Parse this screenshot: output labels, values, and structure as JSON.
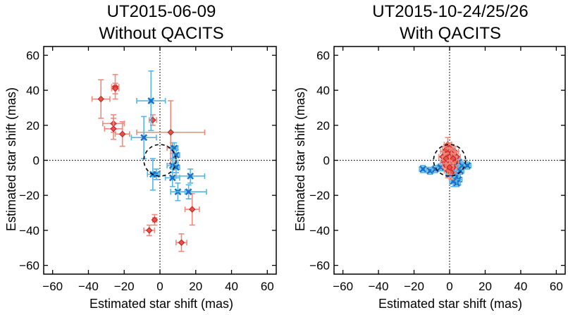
{
  "chart_data": [
    {
      "type": "scatter",
      "title_lines": [
        "UT2015-06-09",
        "Without QACITS"
      ],
      "xlabel": "Estimated star shift (mas)",
      "ylabel": "Estimated star shift (mas)",
      "xlim": [
        -65,
        65
      ],
      "ylim": [
        -65,
        65
      ],
      "ticks": [
        -60,
        -40,
        -20,
        0,
        20,
        40,
        60
      ],
      "tick_labels": [
        "−60",
        "−40",
        "−20",
        "0",
        "20",
        "40",
        "60"
      ],
      "zero_lines": "dotted",
      "reference_circle_radius": 9,
      "series": [
        {
          "color": "#e8504a",
          "error_color": "#f08a7c",
          "marker": "diamond",
          "points": [
            {
              "x": -25,
              "y": 42,
              "xerr": 2,
              "yerr": 7
            },
            {
              "x": -25,
              "y": 41,
              "xerr": 2,
              "yerr": 3
            },
            {
              "x": -33,
              "y": 35,
              "xerr": 5,
              "yerr": 11
            },
            {
              "x": -26,
              "y": 21,
              "xerr": 6,
              "yerr": 5
            },
            {
              "x": -26,
              "y": 18,
              "xerr": 5,
              "yerr": 6
            },
            {
              "x": -4,
              "y": 23,
              "xerr": 2,
              "yerr": 3
            },
            {
              "x": -21,
              "y": 15,
              "xerr": 4,
              "yerr": 7
            },
            {
              "x": 6,
              "y": 16,
              "xerr": 19,
              "yerr": 18
            },
            {
              "x": 7,
              "y": 7,
              "xerr": 3,
              "yerr": 3
            },
            {
              "x": 18,
              "y": -28,
              "xerr": 4,
              "yerr": 9
            },
            {
              "x": -3,
              "y": -34,
              "xerr": 1,
              "yerr": 3
            },
            {
              "x": -6,
              "y": -40,
              "xerr": 3,
              "yerr": 3
            },
            {
              "x": 12,
              "y": -47,
              "xerr": 3,
              "yerr": 5
            }
          ]
        },
        {
          "color": "#1a72c8",
          "error_color": "#56b6e6",
          "marker": "x",
          "points": [
            {
              "x": -5,
              "y": 34,
              "xerr": 8,
              "yerr": 17
            },
            {
              "x": -9,
              "y": 13,
              "xerr": 7,
              "yerr": 12
            },
            {
              "x": 8,
              "y": 7,
              "xerr": 2,
              "yerr": 3
            },
            {
              "x": 9,
              "y": 3,
              "xerr": 2,
              "yerr": 3
            },
            {
              "x": 7,
              "y": -3,
              "xerr": 3,
              "yerr": 4
            },
            {
              "x": 9,
              "y": -4,
              "xerr": 2,
              "yerr": 3
            },
            {
              "x": -2,
              "y": -8,
              "xerr": 2,
              "yerr": 3
            },
            {
              "x": -4,
              "y": -8,
              "xerr": 3,
              "yerr": 9
            },
            {
              "x": 7,
              "y": -10,
              "xerr": 4,
              "yerr": 5
            },
            {
              "x": 17,
              "y": -9,
              "xerr": 8,
              "yerr": 4
            },
            {
              "x": 10,
              "y": -18,
              "xerr": 4,
              "yerr": 5
            },
            {
              "x": 16,
              "y": -18,
              "xerr": 10,
              "yerr": 4
            }
          ]
        }
      ]
    },
    {
      "type": "scatter",
      "title_lines": [
        "UT2015-10-24/25/26",
        "With QACITS"
      ],
      "xlabel": "Estimated star shift (mas)",
      "ylabel": "Estimated star shift (mas)",
      "xlim": [
        -65,
        65
      ],
      "ylim": [
        -65,
        65
      ],
      "ticks": [
        -60,
        -40,
        -20,
        0,
        20,
        40,
        60
      ],
      "tick_labels": [
        "−60",
        "−40",
        "−20",
        "0",
        "20",
        "40",
        "60"
      ],
      "zero_lines": "dotted",
      "reference_circle_radius": 9,
      "series": [
        {
          "color": "#1a72c8",
          "error_color": "#56b6e6",
          "marker": "x",
          "points": [
            {
              "x": -15,
              "y": -5,
              "xerr": 2,
              "yerr": 2
            },
            {
              "x": -11,
              "y": -6,
              "xerr": 2,
              "yerr": 2
            },
            {
              "x": -8,
              "y": -5,
              "xerr": 2,
              "yerr": 2
            },
            {
              "x": -5,
              "y": -4,
              "xerr": 2,
              "yerr": 2
            },
            {
              "x": 1,
              "y": -3,
              "xerr": 2,
              "yerr": 3
            },
            {
              "x": 2,
              "y": -5,
              "xerr": 2,
              "yerr": 2
            },
            {
              "x": 3,
              "y": -7,
              "xerr": 2,
              "yerr": 3
            },
            {
              "x": 4,
              "y": -9,
              "xerr": 2,
              "yerr": 3
            },
            {
              "x": 5,
              "y": -11,
              "xerr": 2,
              "yerr": 3
            },
            {
              "x": 6,
              "y": -6,
              "xerr": 2,
              "yerr": 2
            },
            {
              "x": 3,
              "y": -2,
              "xerr": 2,
              "yerr": 2
            },
            {
              "x": 7,
              "y": -3,
              "xerr": 2,
              "yerr": 2
            },
            {
              "x": 10,
              "y": -3,
              "xerr": 2,
              "yerr": 2
            },
            {
              "x": 4,
              "y": -13,
              "xerr": 2,
              "yerr": 2
            },
            {
              "x": 2,
              "y": -12,
              "xerr": 2,
              "yerr": 3
            },
            {
              "x": 0,
              "y": -8,
              "xerr": 2,
              "yerr": 2
            },
            {
              "x": 5,
              "y": -1,
              "xerr": 2,
              "yerr": 2
            }
          ]
        },
        {
          "color": "#e8504a",
          "error_color": "#f08a7c",
          "marker": "diamond",
          "points": [
            {
              "x": -1,
              "y": 9,
              "xerr": 2,
              "yerr": 4
            },
            {
              "x": 0,
              "y": 7,
              "xerr": 2,
              "yerr": 3
            },
            {
              "x": 1,
              "y": 6,
              "xerr": 2,
              "yerr": 3
            },
            {
              "x": -3,
              "y": 5,
              "xerr": 2,
              "yerr": 3
            },
            {
              "x": 3,
              "y": 5,
              "xerr": 2,
              "yerr": 3
            },
            {
              "x": -2,
              "y": 3,
              "xerr": 2,
              "yerr": 3
            },
            {
              "x": 2,
              "y": 3,
              "xerr": 2,
              "yerr": 3
            },
            {
              "x": -4,
              "y": 2,
              "xerr": 2,
              "yerr": 3
            },
            {
              "x": 4,
              "y": 2,
              "xerr": 2,
              "yerr": 3
            },
            {
              "x": 0,
              "y": 2,
              "xerr": 2,
              "yerr": 3
            },
            {
              "x": -1,
              "y": 0,
              "xerr": 2,
              "yerr": 3
            },
            {
              "x": 1,
              "y": 0,
              "xerr": 2,
              "yerr": 3
            },
            {
              "x": -3,
              "y": -1,
              "xerr": 2,
              "yerr": 3
            },
            {
              "x": 3,
              "y": -1,
              "xerr": 2,
              "yerr": 3
            },
            {
              "x": 0,
              "y": -2,
              "xerr": 2,
              "yerr": 3
            },
            {
              "x": -2,
              "y": -3,
              "xerr": 2,
              "yerr": 3
            },
            {
              "x": 2,
              "y": -4,
              "xerr": 2,
              "yerr": 3
            },
            {
              "x": -1,
              "y": -6,
              "xerr": 2,
              "yerr": 4
            },
            {
              "x": 1,
              "y": -7,
              "xerr": 2,
              "yerr": 4
            },
            {
              "x": -2,
              "y": 6,
              "xerr": 2,
              "yerr": 3
            },
            {
              "x": 1,
              "y": 4,
              "xerr": 2,
              "yerr": 3
            },
            {
              "x": -1,
              "y": 4,
              "xerr": 2,
              "yerr": 3
            },
            {
              "x": 2,
              "y": 1,
              "xerr": 2,
              "yerr": 3
            },
            {
              "x": -2,
              "y": 1,
              "xerr": 2,
              "yerr": 3
            },
            {
              "x": 0,
              "y": -4,
              "xerr": 2,
              "yerr": 4
            }
          ]
        }
      ]
    }
  ]
}
